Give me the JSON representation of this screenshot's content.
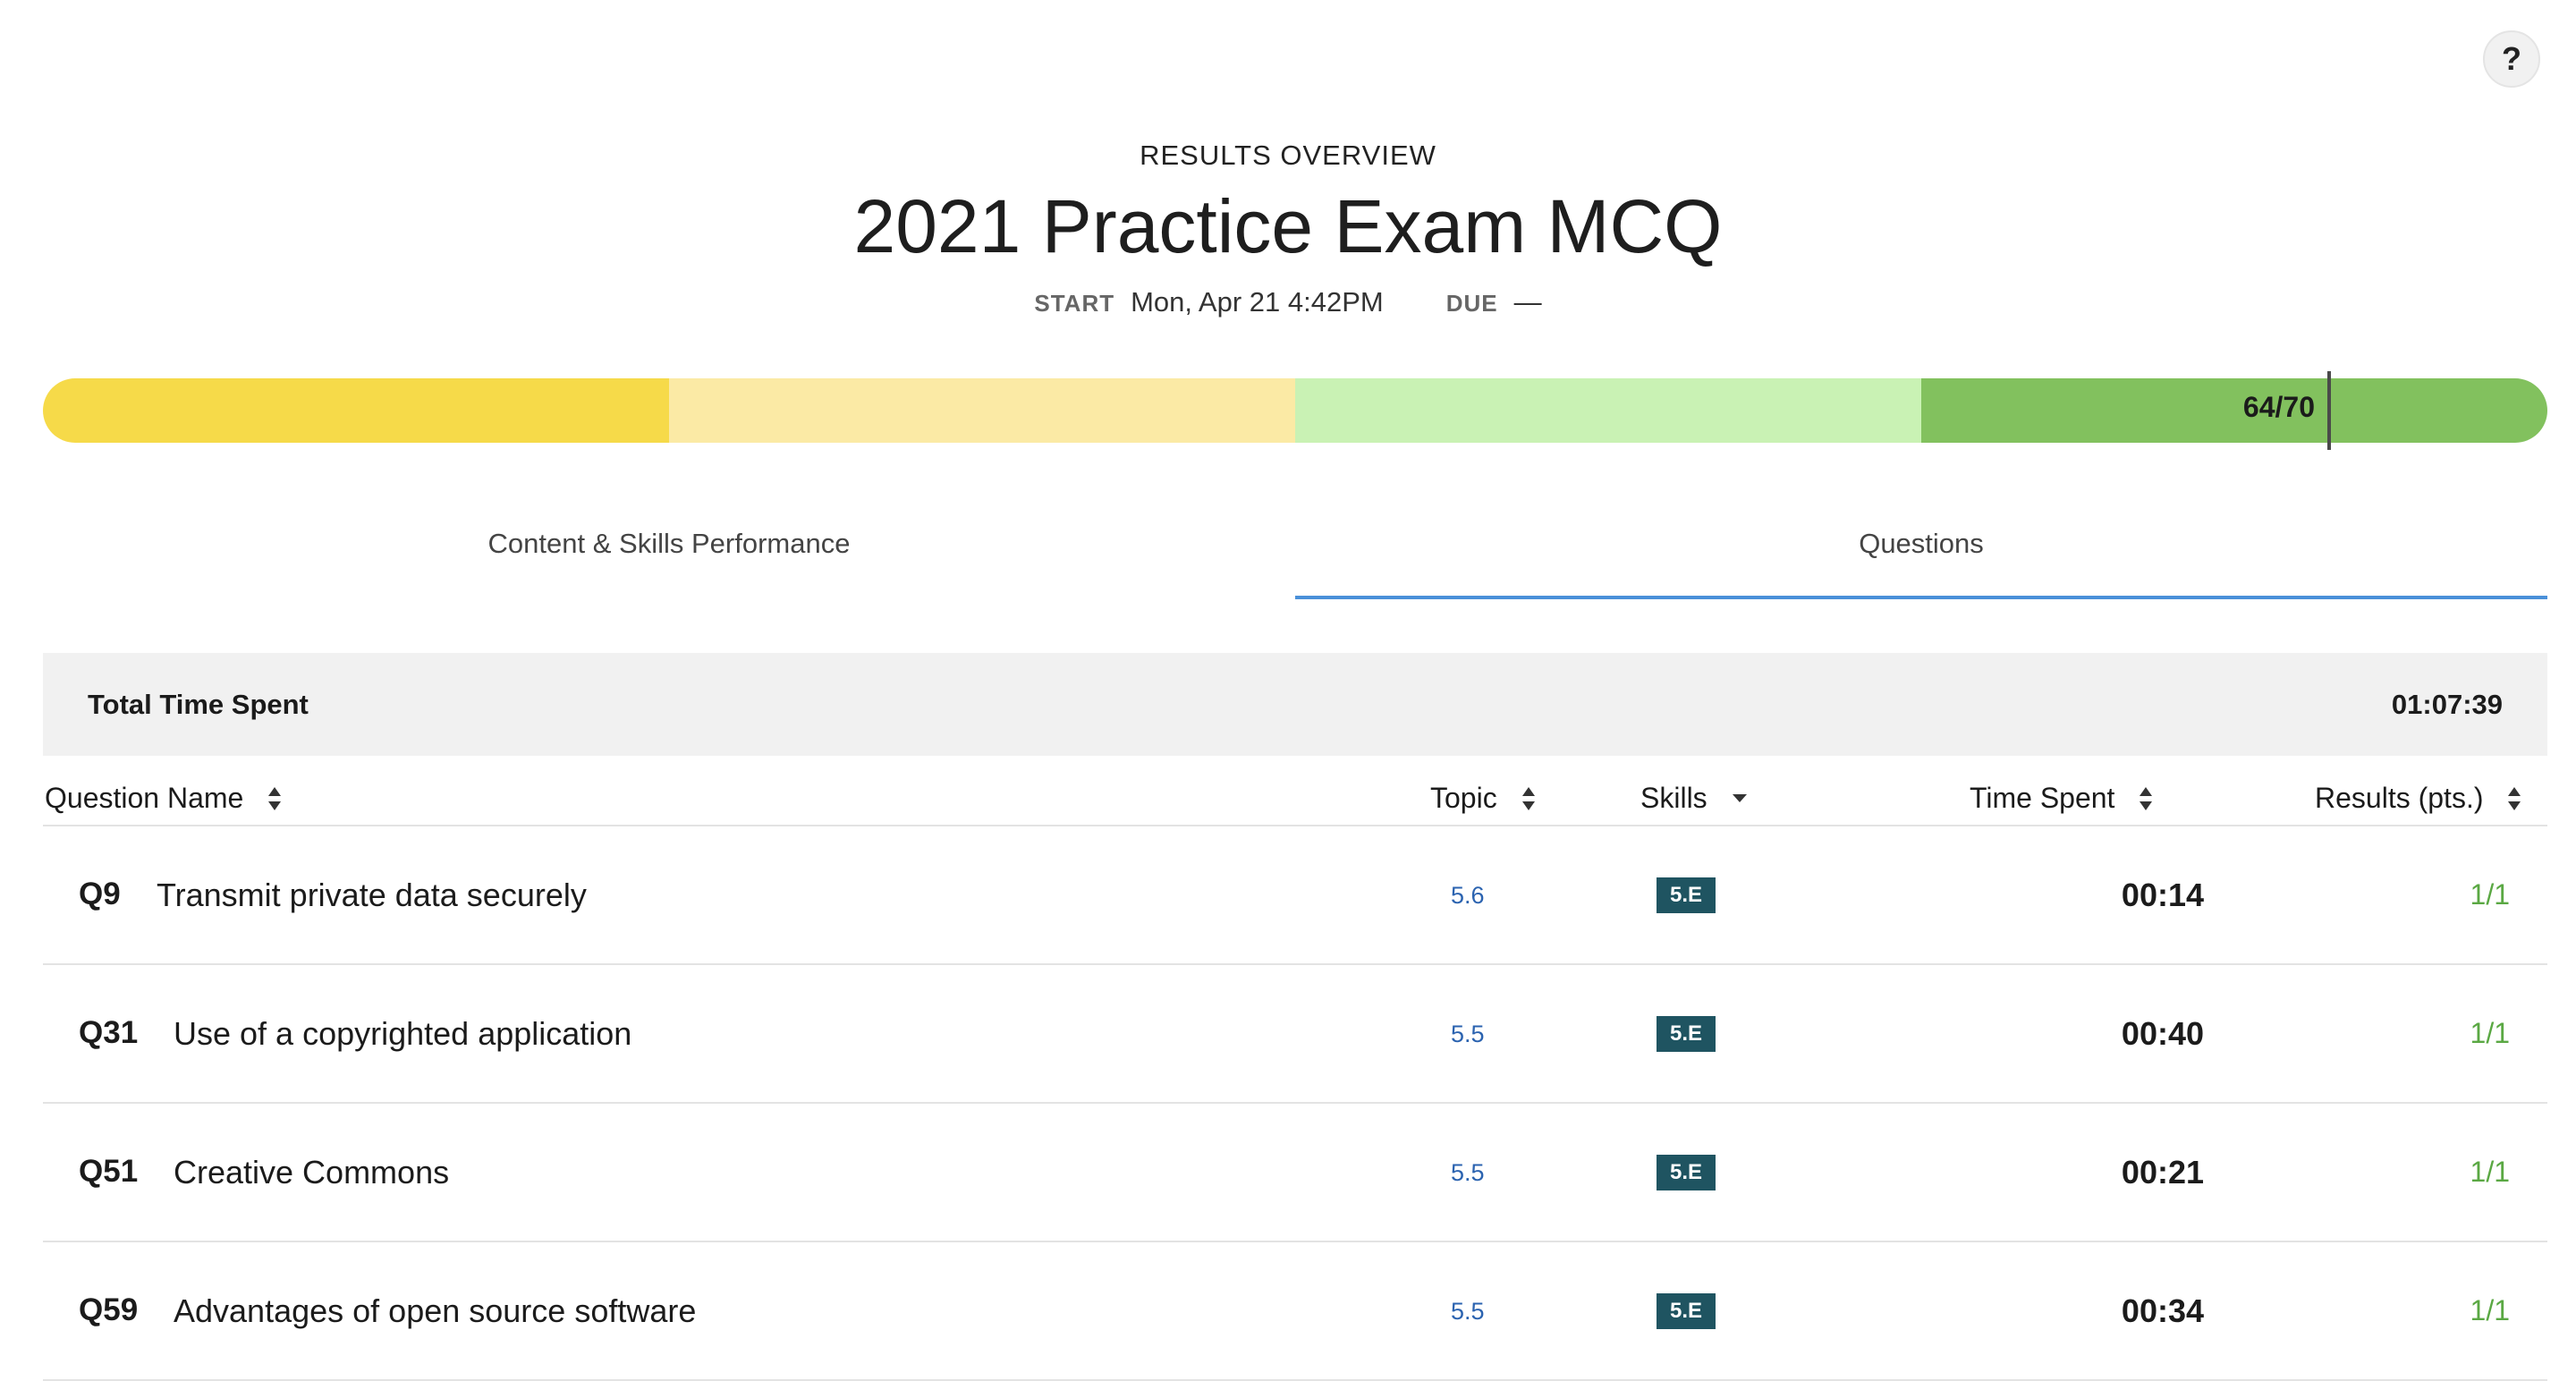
{
  "help_label": "?",
  "header": {
    "overline": "RESULTS OVERVIEW",
    "title": "2021 Practice Exam MCQ",
    "start_label": "START",
    "start_value": "Mon, Apr 21 4:42PM",
    "due_label": "DUE",
    "due_value": "—"
  },
  "score": {
    "label": "64/70",
    "earned": 64,
    "total": 70,
    "segment_colors": [
      "#f6da49",
      "#fbeaa5",
      "#c9f2b4",
      "#82c15e"
    ],
    "marker_color": "#4a4a4a"
  },
  "tabs": [
    {
      "label": "Content & Skills Performance",
      "active": false
    },
    {
      "label": "Questions",
      "active": true
    }
  ],
  "total_time": {
    "label": "Total Time Spent",
    "value": "01:07:39"
  },
  "columns": {
    "question_name": "Question Name",
    "topic": "Topic",
    "skills": "Skills",
    "time_spent": "Time Spent",
    "results": "Results (pts.)"
  },
  "questions": [
    {
      "number": "Q9",
      "name": "Transmit private data securely",
      "topic": "5.6",
      "skill": "5.E",
      "time": "00:14",
      "result": "1/1"
    },
    {
      "number": "Q31",
      "name": "Use of a copyrighted application",
      "topic": "5.5",
      "skill": "5.E",
      "time": "00:40",
      "result": "1/1"
    },
    {
      "number": "Q51",
      "name": "Creative Commons",
      "topic": "5.5",
      "skill": "5.E",
      "time": "00:21",
      "result": "1/1"
    },
    {
      "number": "Q59",
      "name": "Advantages of open source software",
      "topic": "5.5",
      "skill": "5.E",
      "time": "00:34",
      "result": "1/1"
    }
  ],
  "colors": {
    "accent_tab": "#4a90d9",
    "topic_link": "#2b63b0",
    "skill_badge": "#1f5461",
    "result_text": "#5aa843"
  }
}
